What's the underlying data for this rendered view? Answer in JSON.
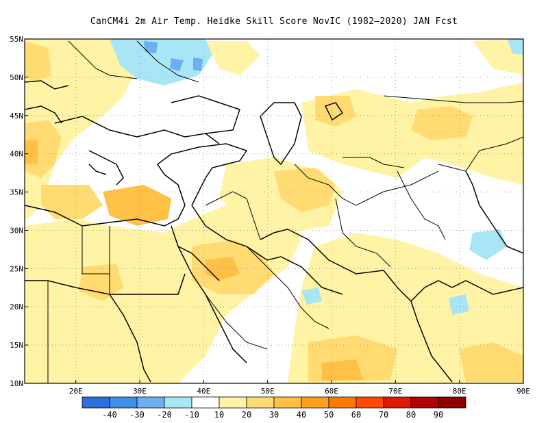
{
  "title": "CanCM4i  2m Air Temp. Heidke Skill Score NovIC (1982–2020) JAN Fcst",
  "map": {
    "lon_range": [
      12,
      90
    ],
    "lat_range": [
      10,
      55
    ],
    "lat_ticks": [
      {
        "value": 55,
        "label": "55N"
      },
      {
        "value": 50,
        "label": "50N"
      },
      {
        "value": 45,
        "label": "45N"
      },
      {
        "value": 40,
        "label": "40N"
      },
      {
        "value": 35,
        "label": "35N"
      },
      {
        "value": 30,
        "label": "30N"
      },
      {
        "value": 25,
        "label": "25N"
      },
      {
        "value": 20,
        "label": "20N"
      },
      {
        "value": 15,
        "label": "15N"
      },
      {
        "value": 10,
        "label": "10N"
      }
    ],
    "lon_ticks": [
      {
        "value": 20,
        "label": "20E"
      },
      {
        "value": 30,
        "label": "30E"
      },
      {
        "value": 40,
        "label": "40E"
      },
      {
        "value": 50,
        "label": "50E"
      },
      {
        "value": 60,
        "label": "60E"
      },
      {
        "value": 70,
        "label": "70E"
      },
      {
        "value": 80,
        "label": "80E"
      },
      {
        "value": 90,
        "label": "90E"
      }
    ],
    "grid": true
  },
  "colorbar": {
    "bins": [
      {
        "color": "#2a6fdb",
        "label": "-40"
      },
      {
        "color": "#3c8ee8",
        "label": "-30"
      },
      {
        "color": "#6ab0f2",
        "label": "-20"
      },
      {
        "color": "#a8e6f6",
        "label": "-10"
      },
      {
        "color": "#ffffff",
        "label": "10"
      },
      {
        "color": "#fff3a6",
        "label": "20"
      },
      {
        "color": "#ffdb72",
        "label": "30"
      },
      {
        "color": "#ffc046",
        "label": "40"
      },
      {
        "color": "#ffa01c",
        "label": "50"
      },
      {
        "color": "#ff7a00",
        "label": "60"
      },
      {
        "color": "#ff4a00",
        "label": "70"
      },
      {
        "color": "#e01a00",
        "label": "80"
      },
      {
        "color": "#b40000",
        "label": "90"
      }
    ],
    "last_color": "#8c0000"
  },
  "skill_regions": [
    {
      "name": "positive-10-20",
      "color": "#fff3a6"
    },
    {
      "name": "positive-20-30",
      "color": "#ffdb72"
    },
    {
      "name": "positive-30-40",
      "color": "#ffc046"
    },
    {
      "name": "negative-0-10",
      "color": "#a8e6f6"
    },
    {
      "name": "negative-10-20",
      "color": "#6ab0f2"
    }
  ]
}
